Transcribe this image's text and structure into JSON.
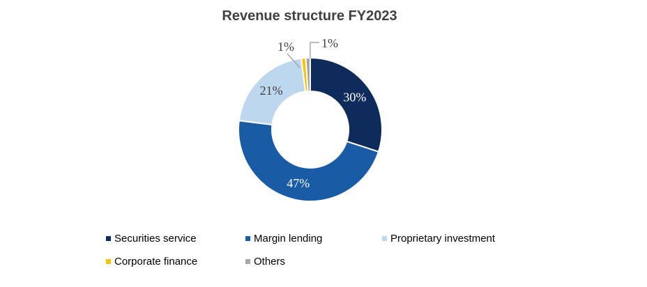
{
  "chart_data": {
    "type": "pie",
    "subtype": "donut",
    "title": "Revenue structure FY2023",
    "categories": [
      "Securities service",
      "Margin lending",
      "Proprietary investment",
      "Corporate finance",
      "Others"
    ],
    "values": [
      30,
      47,
      21,
      1,
      1
    ],
    "data_labels": [
      "30%",
      "47%",
      "21%",
      "1%",
      "1%"
    ],
    "colors": [
      "#0F2B5B",
      "#1A5BA5",
      "#BDD7EE",
      "#FFC000",
      "#A6A6A6"
    ],
    "data_label_colors": [
      "#FFFFFF",
      "#FFFFFF",
      "#404040",
      "#404040",
      "#404040"
    ],
    "units": "percent",
    "total": 100,
    "start_angle_deg": 0,
    "direction": "clockwise",
    "hole_ratio": 0.53,
    "legend_position": "bottom",
    "grid": false
  },
  "style": {
    "background": "#FFFFFF",
    "title_color": "#404040",
    "legend_text_color": "#000000",
    "slice_border_color": "#FFFFFF",
    "leader_line_color": "#A6A6A6"
  }
}
